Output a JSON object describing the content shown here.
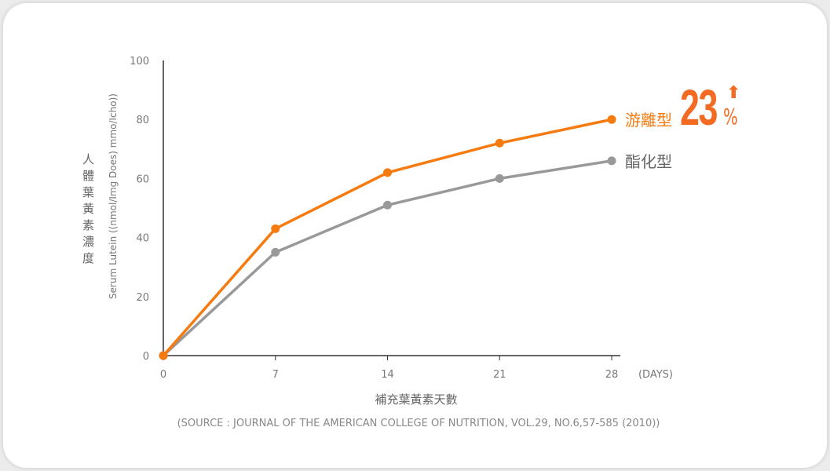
{
  "chart_data": {
    "type": "line",
    "x": [
      0,
      7,
      14,
      21,
      28
    ],
    "x_unit": "(DAYS)",
    "xlabel": "補充葉黃素天數",
    "ylabel": "人體葉黃素濃度",
    "ylabel_en": "Serum Lutein ((nmol/Img Does) mmo/Icho))",
    "ylim": [
      0,
      100
    ],
    "yticks": [
      0,
      20,
      40,
      60,
      80,
      100
    ],
    "xticks": [
      "0",
      "7",
      "14",
      "21",
      "28"
    ],
    "series": [
      {
        "name": "游離型",
        "color": "#f57a10",
        "values": [
          0,
          43,
          62,
          72,
          80
        ]
      },
      {
        "name": "酯化型",
        "color": "#999999",
        "values": [
          0,
          35,
          51,
          60,
          66
        ]
      }
    ],
    "annotation": {
      "value": "23",
      "symbol": "%",
      "icon": "arrow-up-icon",
      "color": "#f36a22"
    },
    "source": "(SOURCE : JOURNAL OF THE AMERICAN COLLEGE OF NUTRITION, VOL.29, NO.6,57-585 (2010))"
  }
}
